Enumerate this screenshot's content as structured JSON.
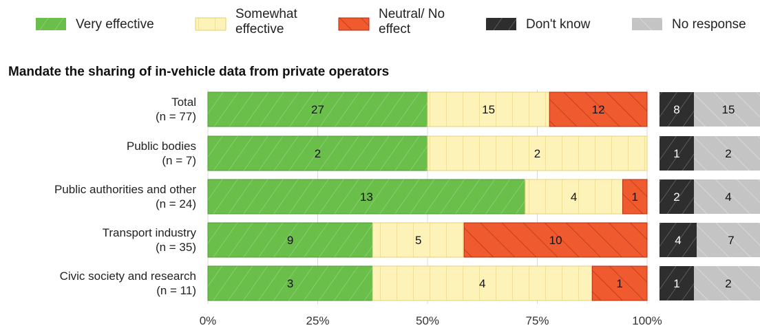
{
  "chart_data": {
    "type": "bar",
    "stacked": true,
    "orientation": "horizontal",
    "title": "Mandate the sharing of in-vehicle data from private operators",
    "categories": [
      [
        "Total",
        "(n = 77)"
      ],
      [
        "Public bodies",
        "(n = 7)"
      ],
      [
        "Public authorities and other",
        "(n = 24)"
      ],
      [
        "Transport industry",
        "(n = 35)"
      ],
      [
        "Civic society and research",
        "(n = 11)"
      ]
    ],
    "series": [
      {
        "name": "Very effective",
        "values": [
          27,
          2,
          13,
          9,
          3
        ],
        "color": "#6abf4b",
        "pattern": "diag-fine"
      },
      {
        "name": "Somewhat effective",
        "values": [
          15,
          2,
          4,
          5,
          4
        ],
        "color": "#fdf2b8",
        "pattern": "vertical"
      },
      {
        "name": "Neutral/ No effect",
        "values": [
          12,
          0,
          1,
          10,
          1
        ],
        "color": "#ef5a2f",
        "pattern": "diag-back"
      }
    ],
    "side_series": [
      {
        "name": "Don't know",
        "values": [
          8,
          1,
          2,
          4,
          1
        ],
        "color": "#2e2e2e"
      },
      {
        "name": "No response",
        "values": [
          15,
          2,
          4,
          7,
          2
        ],
        "color": "#c4c4c4"
      }
    ],
    "legend": [
      {
        "label": "Very effective",
        "color": "#6abf4b",
        "pattern": "diag-fine"
      },
      {
        "label": "Somewhat effective",
        "color": "#fdf2b8",
        "pattern": "vertical"
      },
      {
        "label": "Neutral/ No effect",
        "color": "#ef5a2f",
        "pattern": "diag-back"
      },
      {
        "label": "Don't know",
        "color": "#2e2e2e",
        "pattern": "diag-fine"
      },
      {
        "label": "No response",
        "color": "#c4c4c4",
        "pattern": "diag-back"
      }
    ],
    "legend_lines": [
      [
        "Very effective"
      ],
      [
        "Somewhat",
        "effective"
      ],
      [
        "Neutral/ No",
        "effect"
      ],
      [
        "Don't know"
      ],
      [
        "No response"
      ]
    ],
    "xticks": [
      "0%",
      "25%",
      "50%",
      "75%",
      "100%"
    ],
    "xlim": [
      0,
      100
    ],
    "grid": true,
    "legend_position": "top"
  }
}
